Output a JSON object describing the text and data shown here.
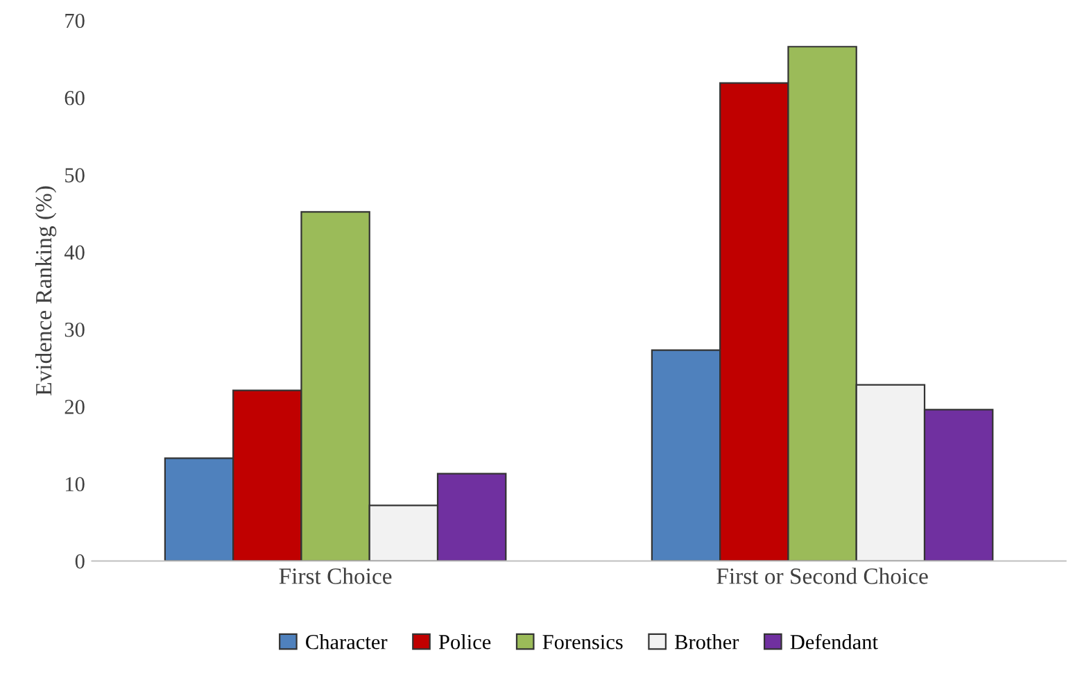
{
  "chart_data": {
    "type": "bar",
    "ylabel": "Evidence Ranking (%)",
    "categories": [
      "First Choice",
      "First or Second Choice"
    ],
    "series": [
      {
        "name": "Character",
        "color": "#4f81bd",
        "values": [
          13.3,
          27.3
        ]
      },
      {
        "name": "Police",
        "color": "#c00000",
        "values": [
          22.1,
          61.9
        ]
      },
      {
        "name": "Forensics",
        "color": "#9bbb59",
        "values": [
          45.2,
          66.6
        ]
      },
      {
        "name": "Brother",
        "color": "#f2f2f2",
        "values": [
          7.2,
          22.8
        ]
      },
      {
        "name": "Defendant",
        "color": "#7030a0",
        "values": [
          11.3,
          19.6
        ]
      }
    ],
    "ylim": [
      0,
      70
    ],
    "yticks": [
      0,
      10,
      20,
      30,
      40,
      50,
      60,
      70
    ],
    "grid": false,
    "legend": "bottom"
  }
}
